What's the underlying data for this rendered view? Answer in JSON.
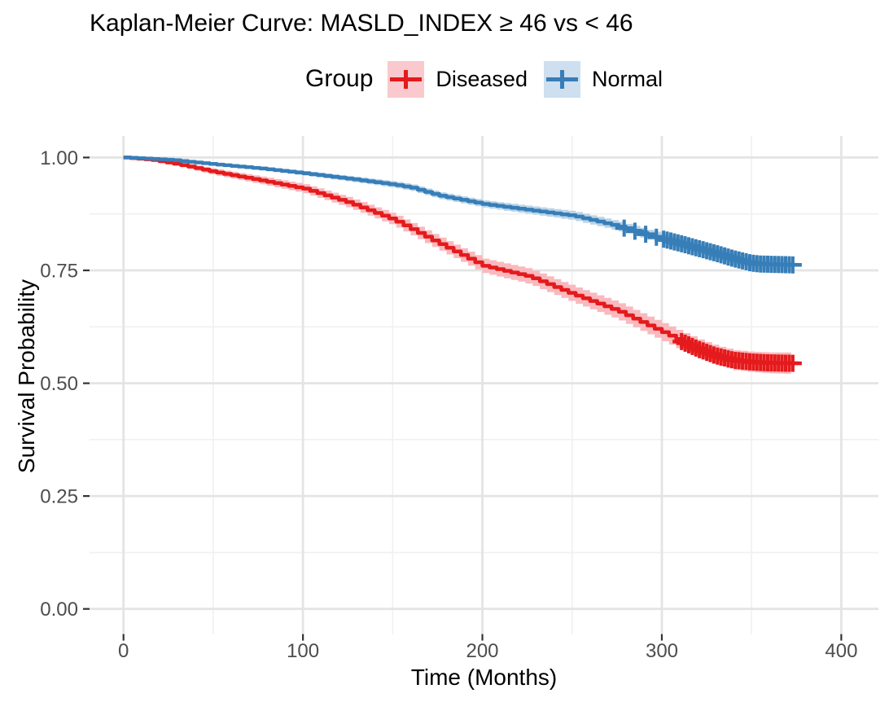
{
  "title": "Kaplan-Meier Curve: MASLD_INDEX ≥ 46 vs < 46",
  "legend": {
    "title": "Group",
    "items": [
      {
        "id": "diseased",
        "label": "Diseased",
        "color": "#E41A1C",
        "key_bg": "#F9C9CE"
      },
      {
        "id": "normal",
        "label": "Normal",
        "color": "#377EB8",
        "key_bg": "#CEDFEF"
      }
    ]
  },
  "axes": {
    "x_title": "Time (Months)",
    "y_title": "Survival Probability"
  },
  "chart_data": {
    "type": "line",
    "subtype": "kaplan-meier-step",
    "title": "Kaplan-Meier Curve: MASLD_INDEX ≥ 46 vs < 46",
    "xlabel": "Time (Months)",
    "ylabel": "Survival Probability",
    "xlim": [
      -19,
      421
    ],
    "ylim": [
      -0.05,
      1.05
    ],
    "x_ticks": [
      0,
      100,
      200,
      300,
      400
    ],
    "x_minor_ticks": [
      50,
      150,
      250,
      350
    ],
    "y_ticks": [
      0,
      0.25,
      0.5,
      0.75,
      1
    ],
    "y_tick_labels": [
      "0.00",
      "0.25",
      "0.50",
      "0.75",
      "1.00"
    ],
    "y_minor_ticks": [
      0.125,
      0.375,
      0.625,
      0.875
    ],
    "grid": true,
    "legend_position": "top",
    "legend_title": "Group",
    "tick_label_color": "#4D4D4D",
    "gridline_major_color": "#E4E4E4",
    "gridline_minor_color": "#F0F0F0",
    "series": [
      {
        "name": "Diseased",
        "color": "#E41A1C",
        "ribbon_color": "#F9B9BE",
        "points": [
          [
            0,
            1.0
          ],
          [
            15,
            0.995
          ],
          [
            30,
            0.985
          ],
          [
            50,
            0.968
          ],
          [
            75,
            0.95
          ],
          [
            100,
            0.931
          ],
          [
            125,
            0.9
          ],
          [
            150,
            0.862
          ],
          [
            175,
            0.81
          ],
          [
            200,
            0.76
          ],
          [
            225,
            0.737
          ],
          [
            250,
            0.697
          ],
          [
            275,
            0.66
          ],
          [
            300,
            0.613
          ],
          [
            310,
            0.594
          ],
          [
            320,
            0.576
          ],
          [
            330,
            0.561
          ],
          [
            340,
            0.551
          ],
          [
            350,
            0.547
          ],
          [
            360,
            0.545
          ],
          [
            374,
            0.544
          ]
        ],
        "ci_halfwidth": [
          [
            0,
            0.002
          ],
          [
            50,
            0.007
          ],
          [
            100,
            0.01
          ],
          [
            150,
            0.013
          ],
          [
            200,
            0.016
          ],
          [
            250,
            0.018
          ],
          [
            300,
            0.02
          ],
          [
            340,
            0.022
          ],
          [
            374,
            0.024
          ]
        ],
        "censor_times": [
          311,
          313,
          315,
          317,
          319,
          321,
          323,
          325,
          327,
          329,
          331,
          333,
          335,
          337,
          339,
          341,
          343,
          345,
          347,
          349,
          351,
          353,
          355,
          357,
          359,
          361,
          363,
          365,
          367,
          369,
          371,
          373
        ]
      },
      {
        "name": "Normal",
        "color": "#377EB8",
        "ribbon_color": "#B9D4E8",
        "points": [
          [
            0,
            1.0
          ],
          [
            25,
            0.995
          ],
          [
            50,
            0.985
          ],
          [
            75,
            0.976
          ],
          [
            100,
            0.965
          ],
          [
            125,
            0.953
          ],
          [
            150,
            0.94
          ],
          [
            160,
            0.933
          ],
          [
            175,
            0.916
          ],
          [
            200,
            0.897
          ],
          [
            225,
            0.884
          ],
          [
            250,
            0.871
          ],
          [
            275,
            0.848
          ],
          [
            300,
            0.82
          ],
          [
            310,
            0.81
          ],
          [
            320,
            0.799
          ],
          [
            330,
            0.788
          ],
          [
            340,
            0.776
          ],
          [
            350,
            0.766
          ],
          [
            355,
            0.764
          ],
          [
            374,
            0.762
          ]
        ],
        "ci_halfwidth": [
          [
            0,
            0.001
          ],
          [
            50,
            0.003
          ],
          [
            100,
            0.005
          ],
          [
            150,
            0.007
          ],
          [
            200,
            0.008
          ],
          [
            250,
            0.01
          ],
          [
            300,
            0.011
          ],
          [
            340,
            0.013
          ],
          [
            374,
            0.014
          ]
        ],
        "censor_times": [
          279,
          285,
          291,
          297,
          301,
          303,
          305,
          307,
          309,
          311,
          313,
          315,
          317,
          319,
          321,
          323,
          325,
          327,
          329,
          331,
          333,
          335,
          337,
          339,
          341,
          343,
          345,
          347,
          349,
          351,
          353,
          355,
          357,
          359,
          361,
          363,
          365,
          367,
          369,
          371,
          373
        ]
      }
    ]
  }
}
